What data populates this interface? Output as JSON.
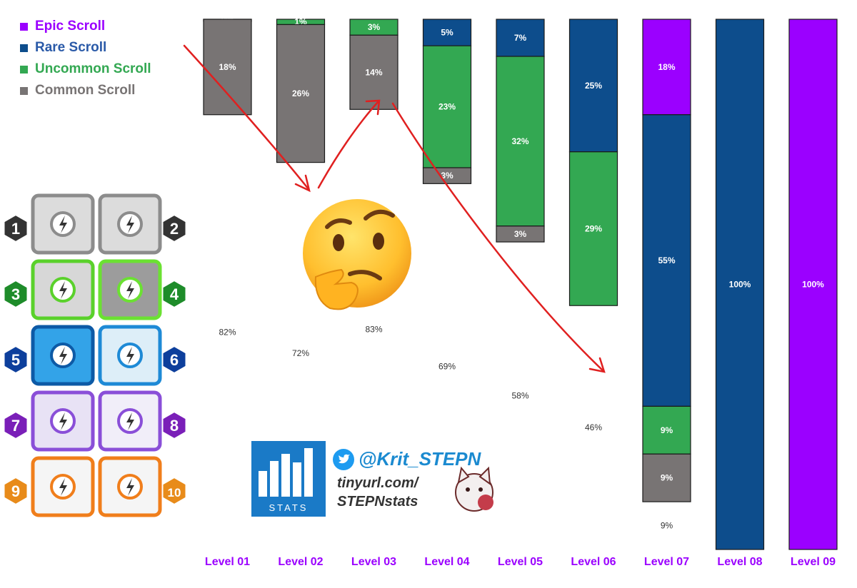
{
  "chart_data": {
    "type": "bar",
    "stacked": true,
    "categories": [
      "Level 01",
      "Level 02",
      "Level 03",
      "Level 04",
      "Level 05",
      "Level 06",
      "Level 07",
      "Level 08",
      "Level 09"
    ],
    "series": [
      {
        "name": "Epic Scroll",
        "color": "#9b00ff",
        "values": [
          0,
          0,
          0,
          0,
          0,
          0,
          18,
          0,
          100
        ]
      },
      {
        "name": "Rare Scroll",
        "color": "#0d4d8c",
        "values": [
          0,
          0,
          0,
          5,
          7,
          25,
          55,
          100,
          0
        ]
      },
      {
        "name": "Uncommon Scroll",
        "color": "#33a852",
        "values": [
          0,
          1,
          3,
          23,
          32,
          29,
          9,
          0,
          0
        ]
      },
      {
        "name": "Common Scroll",
        "color": "#787474",
        "values": [
          18,
          26,
          14,
          3,
          3,
          0,
          9,
          0,
          0
        ]
      },
      {
        "name": "None",
        "color": "#ffffff",
        "values": [
          82,
          72,
          83,
          69,
          58,
          46,
          9,
          0,
          0
        ]
      }
    ],
    "labels": [
      [
        "0%",
        "18%",
        "82%"
      ],
      [
        "1%",
        "26%",
        "72%"
      ],
      [
        "3%",
        "14%",
        "83%"
      ],
      [
        "5%",
        "23%",
        "3%",
        "69%"
      ],
      [
        "7%",
        "32%",
        "3%",
        "58%"
      ],
      [
        "25%",
        "29%",
        "46%"
      ],
      [
        "18%",
        "55%",
        "9%",
        "9%",
        "9%"
      ],
      [
        "100%"
      ],
      [
        "100%"
      ]
    ],
    "ylim": [
      0,
      100
    ],
    "legend_position": "top-left",
    "grid": false
  },
  "legend": [
    {
      "label": "Epic Scroll",
      "color": "#9b00ff"
    },
    {
      "label": "Rare Scroll",
      "color": "#0d4d8c"
    },
    {
      "label": "Uncommon Scroll",
      "color": "#33a852"
    },
    {
      "label": "Common Scroll",
      "color": "#787474"
    }
  ],
  "level_badges": [
    {
      "number": "1",
      "color": "#333333"
    },
    {
      "number": "2",
      "color": "#333333"
    },
    {
      "number": "3",
      "color": "#1e8c2a"
    },
    {
      "number": "4",
      "color": "#1e8c2a"
    },
    {
      "number": "5",
      "color": "#0d3f9c"
    },
    {
      "number": "6",
      "color": "#0d3f9c"
    },
    {
      "number": "7",
      "color": "#7a1fb8"
    },
    {
      "number": "8",
      "color": "#7a1fb8"
    },
    {
      "number": "9",
      "color": "#e88b1a"
    },
    {
      "number": "10",
      "color": "#e88b1a"
    }
  ],
  "branding": {
    "logo_text": "STATS",
    "handle": "@Krit_STEPN",
    "url_line1": "tinyurl.com/",
    "url_line2": "STEPNstats"
  },
  "colors": {
    "label_color": "#9b00ff",
    "arrow": "#e02020"
  }
}
